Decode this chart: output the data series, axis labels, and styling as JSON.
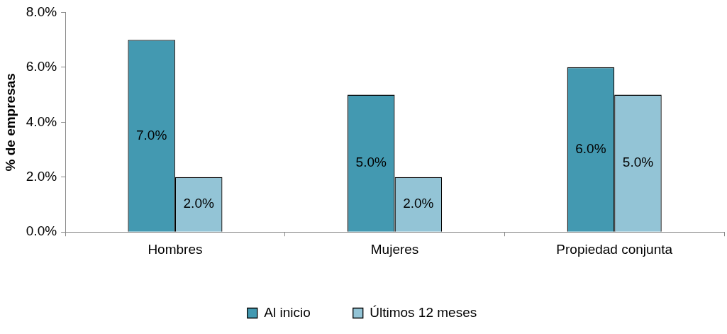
{
  "chart_data": {
    "type": "bar",
    "ylabel": "% de empresas",
    "categories": [
      "Hombres",
      "Mujeres",
      "Propiedad conjunta"
    ],
    "series": [
      {
        "name": "Al inicio",
        "color": "#4399b1",
        "values": [
          7.0,
          5.0,
          6.0
        ],
        "value_labels": [
          "7.0%",
          "5.0%",
          "6.0%"
        ]
      },
      {
        "name": "Últimos 12 meses",
        "color": "#93c4d6",
        "values": [
          2.0,
          2.0,
          5.0
        ],
        "value_labels": [
          "2.0%",
          "2.0%",
          "5.0%"
        ]
      }
    ],
    "ylim": [
      0,
      8
    ],
    "yticks": [
      {
        "value": 0,
        "label": "0.0%"
      },
      {
        "value": 2,
        "label": "2.0%"
      },
      {
        "value": 4,
        "label": "4.0%"
      },
      {
        "value": 6,
        "label": "6.0%"
      },
      {
        "value": 8,
        "label": "8.0%"
      }
    ],
    "grid": false,
    "legend": "bottom"
  }
}
